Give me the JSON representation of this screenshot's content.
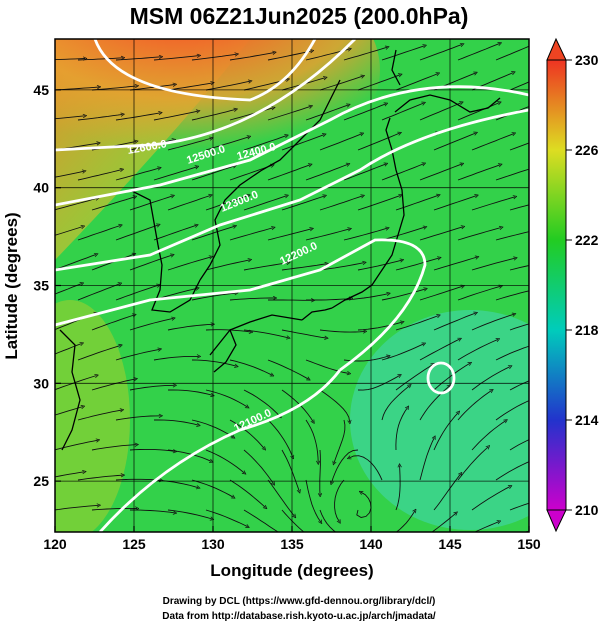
{
  "title": "MSM 06Z21Jun2025 (200.0hPa)",
  "xlabel": "Longitude (degrees)",
  "ylabel": "Latitude  (degrees)",
  "credits": [
    "Drawing by DCL (https://www.gfd-dennou.org/library/dcl/)",
    "Data from http://database.rish.kyoto-u.ac.jp/arch/jmadata/"
  ],
  "chart_data": {
    "type": "heatmap",
    "x_axis": {
      "range": [
        120,
        150
      ],
      "ticks": [
        120,
        125,
        130,
        135,
        140,
        145,
        150
      ]
    },
    "y_axis": {
      "range": [
        22.4,
        47.6
      ],
      "ticks": [
        25,
        30,
        35,
        40,
        45
      ]
    },
    "colorbar": {
      "range": [
        210,
        230
      ],
      "ticks": [
        210,
        214,
        218,
        222,
        226,
        230
      ],
      "colors": [
        "#cc00cc",
        "#2233cc",
        "#00ccbb",
        "#22cc22",
        "#dddd22",
        "#ee4422"
      ]
    },
    "contour_labels": [
      "12100.0",
      "12200.0",
      "12300.0",
      "12400.0",
      "12500.0",
      "12600.0"
    ],
    "streamlines": true
  }
}
